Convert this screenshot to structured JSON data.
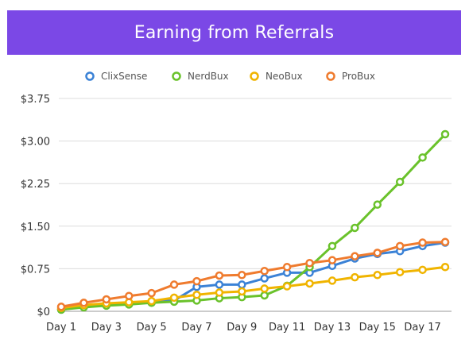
{
  "title": "Earning from Referrals",
  "chart_data": {
    "type": "line",
    "title": "Earning from Referrals",
    "xlabel": "",
    "ylabel": "",
    "x": [
      "Day 1",
      "Day 2",
      "Day 3",
      "Day 4",
      "Day 5",
      "Day 6",
      "Day 7",
      "Day 8",
      "Day 9",
      "Day 10",
      "Day 11",
      "Day 12",
      "Day 13",
      "Day 14",
      "Day 15",
      "Day 16",
      "Day 17",
      "Day 18"
    ],
    "x_tick_labels": [
      "Day 1",
      "Day 3",
      "Day 5",
      "Day 7",
      "Day 9",
      "Day 11",
      "Day 13",
      "Day 15",
      "Day 17"
    ],
    "y_tick_labels": [
      "$0",
      "$0.75",
      "$1.50",
      "$2.25",
      "$3.00",
      "$3.75"
    ],
    "y_ticks": [
      0,
      0.75,
      1.5,
      2.25,
      3.0,
      3.75
    ],
    "ylim": [
      0,
      3.75
    ],
    "grid": true,
    "legend_position": "top",
    "series": [
      {
        "name": "ClixSense",
        "color": "#3b82d6",
        "values": [
          0.03,
          0.08,
          0.11,
          0.13,
          0.17,
          0.19,
          0.43,
          0.47,
          0.47,
          0.58,
          0.68,
          0.68,
          0.8,
          0.93,
          1.01,
          1.06,
          1.15,
          1.21
        ]
      },
      {
        "name": "NerdBux",
        "color": "#6ac22b",
        "values": [
          0.03,
          0.07,
          0.1,
          0.12,
          0.15,
          0.17,
          0.19,
          0.23,
          0.25,
          0.28,
          0.45,
          0.78,
          1.15,
          1.47,
          1.88,
          2.28,
          2.71,
          3.12
        ]
      },
      {
        "name": "NeoBux",
        "color": "#f0b400",
        "values": [
          0.06,
          0.11,
          0.14,
          0.16,
          0.18,
          0.24,
          0.29,
          0.33,
          0.35,
          0.4,
          0.44,
          0.49,
          0.54,
          0.6,
          0.64,
          0.69,
          0.73,
          0.78
        ]
      },
      {
        "name": "ProBux",
        "color": "#ef7b2e",
        "values": [
          0.08,
          0.15,
          0.21,
          0.27,
          0.32,
          0.47,
          0.53,
          0.63,
          0.64,
          0.71,
          0.78,
          0.85,
          0.9,
          0.97,
          1.03,
          1.15,
          1.21,
          1.22
        ]
      }
    ]
  }
}
